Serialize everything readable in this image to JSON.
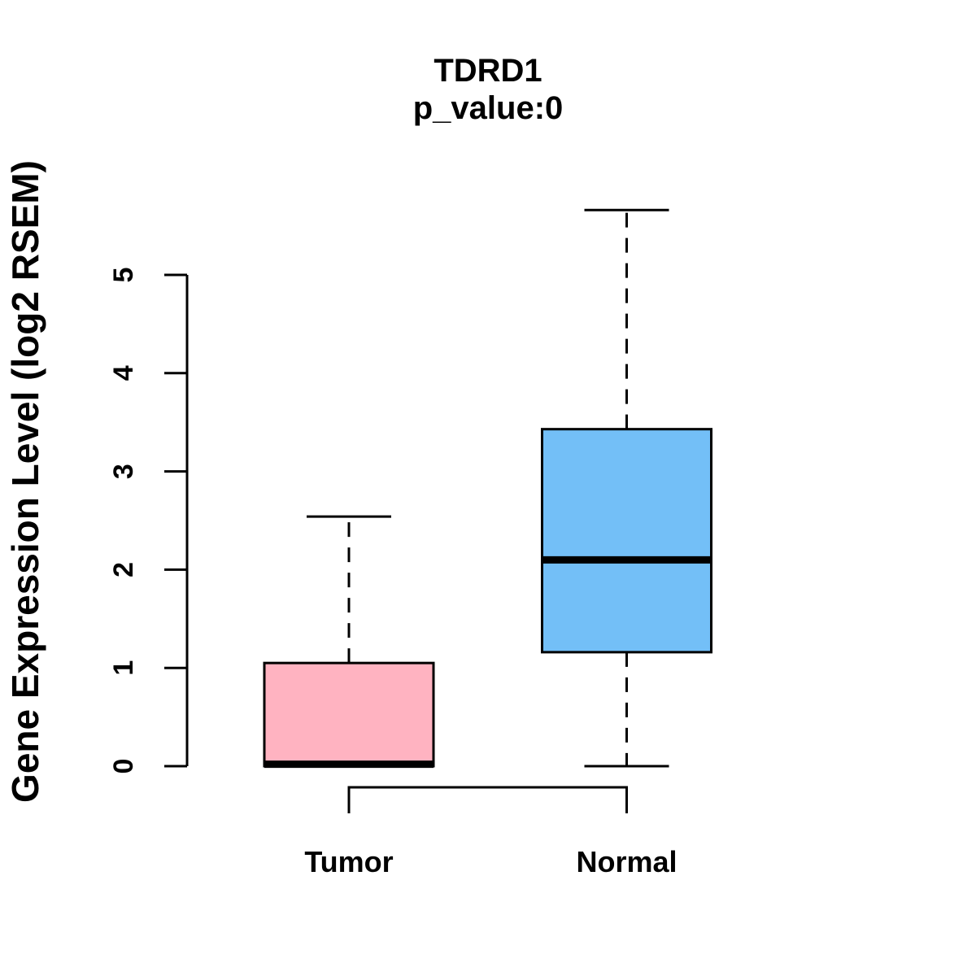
{
  "chart_data": {
    "type": "boxplot",
    "title": "TDRD1",
    "subtitle": "p_value:0",
    "ylabel": "Gene Expression Level (log2 RSEM)",
    "xlabel": "",
    "ylim": [
      0,
      5
    ],
    "yticks": [
      0,
      1,
      2,
      3,
      4,
      5
    ],
    "grid": false,
    "legend": "none",
    "categories": [
      "Tumor",
      "Normal"
    ],
    "series": [
      {
        "name": "Tumor",
        "fill_color": "#FFB3C1",
        "stats": {
          "whisker_low": 0,
          "q1": 0,
          "median": 0.02,
          "q3": 1.05,
          "whisker_high": 2.54
        }
      },
      {
        "name": "Normal",
        "fill_color": "#73BFF7",
        "stats": {
          "whisker_low": 0,
          "q1": 1.16,
          "median": 2.1,
          "q3": 3.43,
          "whisker_high": 5.66
        }
      }
    ],
    "comparison_bracket": {
      "between": [
        "Tumor",
        "Normal"
      ],
      "side": "bottom"
    },
    "line_color": "#000000",
    "background_color": "#FFFFFF"
  }
}
